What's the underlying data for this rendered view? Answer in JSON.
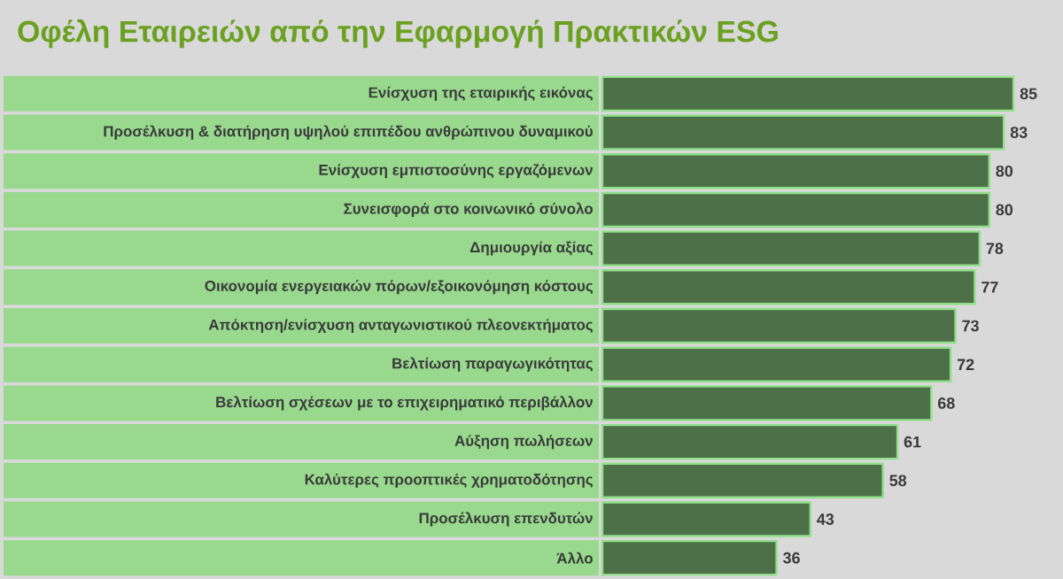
{
  "chart_data": {
    "type": "bar",
    "orientation": "horizontal",
    "title": "Οφέλη Εταιρειών από την Εφαρμογή Πρακτικών ESG",
    "categories": [
      "Ενίσχυση της εταιρικής εικόνας",
      "Προσέλκυση & διατήρηση υψηλού επιπέδου ανθρώπινου δυναμικού",
      "Ενίσχυση εμπιστοσύνης εργαζόμενων",
      "Συνεισφορά στο κοινωνικό σύνολο",
      "Δημιουργία αξίας",
      "Οικονομία ενεργειακών πόρων/εξοικονόμηση κόστους",
      "Απόκτηση/ενίσχυση ανταγωνιστικού πλεονεκτήματος",
      "Βελτίωση παραγωγικότητας",
      "Βελτίωση σχέσεων με το επιχειρηματικό περιβάλλον",
      "Αύξηση πωλήσεων",
      "Καλύτερες προοπτικές χρηματοδότησης",
      "Προσέλκυση επενδυτών",
      "Άλλο"
    ],
    "values": [
      85,
      83,
      80,
      80,
      78,
      77,
      73,
      72,
      68,
      61,
      58,
      43,
      36
    ],
    "color": "#4e7048",
    "data_labels": true
  }
}
